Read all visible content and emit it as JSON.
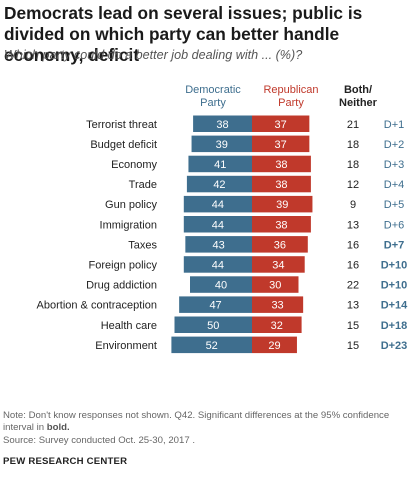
{
  "header": {
    "title": "Democrats lead on several issues; public is divided on which party can better handle economy, deficit",
    "subtitle": "Which party could do a better job dealing with ... (%)?"
  },
  "columns": {
    "democratic_line1": "Democratic",
    "democratic_line2": "Party",
    "republican_line1": "Republican",
    "republican_line2": "Party",
    "both_line1": "Both/",
    "both_line2": "Neither"
  },
  "footer": {
    "note_prefix": "Note: Don't know responses not shown. Q42. Significant differences at the 95% confidence interval in",
    "note_bold": "bold.",
    "source": "Source: Survey conducted Oct. 25-30, 2017 .",
    "organization": "PEW RESEARCH CENTER"
  },
  "colors": {
    "democratic": "#3e6e8e",
    "republican": "#c0392b",
    "diff_text": "#3e6e8e"
  },
  "chart_data": {
    "type": "bar",
    "orientation": "horizontal diverging",
    "categories": [
      "Terrorist threat",
      "Budget deficit",
      "Economy",
      "Trade",
      "Gun policy",
      "Immigration",
      "Taxes",
      "Foreign policy",
      "Drug addiction",
      "Abortion & contraception",
      "Health care",
      "Environment"
    ],
    "series": [
      {
        "name": "Democratic Party",
        "values": [
          38,
          39,
          41,
          42,
          44,
          44,
          43,
          44,
          40,
          47,
          50,
          52
        ]
      },
      {
        "name": "Republican Party",
        "values": [
          37,
          37,
          38,
          38,
          39,
          38,
          36,
          34,
          30,
          33,
          32,
          29
        ]
      },
      {
        "name": "Both/Neither",
        "values": [
          21,
          18,
          18,
          12,
          9,
          13,
          16,
          16,
          22,
          13,
          15,
          15
        ]
      }
    ],
    "differences": [
      "D+1",
      "D+2",
      "D+3",
      "D+4",
      "D+5",
      "D+6",
      "D+7",
      "D+10",
      "D+10",
      "D+14",
      "D+18",
      "D+23"
    ],
    "significant": [
      false,
      false,
      false,
      false,
      false,
      false,
      true,
      true,
      true,
      true,
      true,
      true
    ]
  }
}
